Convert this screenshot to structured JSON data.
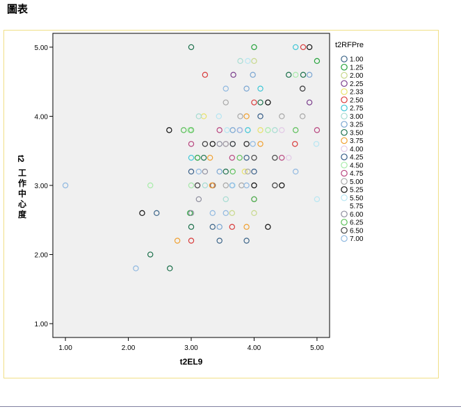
{
  "page": {
    "title": "圖表"
  },
  "chart_data": {
    "type": "scatter",
    "xlabel": "t2EL9",
    "ylabel": "t2工作中心度",
    "xlim": [
      0.8,
      5.2
    ],
    "ylim": [
      0.8,
      5.2
    ],
    "xticks": [
      "1.00",
      "2.00",
      "3.00",
      "4.00",
      "5.00"
    ],
    "yticks": [
      "1.00",
      "2.00",
      "3.00",
      "4.00",
      "5.00"
    ],
    "grid": false,
    "legend": {
      "title": "t2RFPre",
      "placement": "right"
    },
    "series": [
      {
        "name": "1.00",
        "color": "#3b6488",
        "points": [
          [
            3.45,
            2.2
          ],
          [
            2.45,
            2.6
          ],
          [
            3.88,
            2.2
          ],
          [
            3.34,
            2.4
          ]
        ]
      },
      {
        "name": "1.25",
        "color": "#23a23a",
        "points": [
          [
            4.0,
            5.0
          ],
          [
            5.0,
            4.8
          ],
          [
            2.98,
            2.6
          ],
          [
            3.1,
            3.4
          ]
        ]
      },
      {
        "name": "2.00",
        "color": "#c7d88a",
        "points": [
          [
            4.0,
            4.8
          ],
          [
            3.35,
            3.0
          ],
          [
            4.0,
            2.6
          ],
          [
            3.65,
            2.6
          ]
        ]
      },
      {
        "name": "2.25",
        "color": "#7a3d8c",
        "points": [
          [
            3.67,
            4.6
          ],
          [
            4.88,
            4.2
          ],
          [
            3.55,
            3.6
          ],
          [
            3.34,
            3.0
          ]
        ]
      },
      {
        "name": "2.33",
        "color": "#e8e26a",
        "points": [
          [
            3.2,
            4.0
          ],
          [
            4.1,
            3.8
          ],
          [
            3.85,
            3.2
          ]
        ]
      },
      {
        "name": "2.50",
        "color": "#d83a3a",
        "points": [
          [
            4.78,
            5.0
          ],
          [
            3.22,
            4.6
          ],
          [
            4.0,
            4.2
          ],
          [
            4.65,
            3.6
          ],
          [
            3.0,
            2.2
          ],
          [
            3.65,
            2.4
          ]
        ]
      },
      {
        "name": "2.75",
        "color": "#3ec6d6",
        "points": [
          [
            4.66,
            5.0
          ],
          [
            4.1,
            4.4
          ],
          [
            3.9,
            3.8
          ],
          [
            3.0,
            3.4
          ]
        ]
      },
      {
        "name": "3.00",
        "color": "#a6dcd2",
        "points": [
          [
            3.78,
            4.8
          ],
          [
            3.12,
            4.0
          ],
          [
            4.33,
            3.8
          ],
          [
            3.22,
            3.0
          ],
          [
            3.55,
            2.8
          ]
        ]
      },
      {
        "name": "3.25",
        "color": "#7aa6d2",
        "points": [
          [
            3.98,
            4.6
          ],
          [
            3.88,
            4.4
          ],
          [
            3.66,
            3.8
          ],
          [
            3.45,
            3.2
          ],
          [
            4.88,
            4.6
          ],
          [
            3.45,
            2.4
          ]
        ]
      },
      {
        "name": "3.50",
        "color": "#1a6f4a",
        "points": [
          [
            3.0,
            5.0
          ],
          [
            4.55,
            4.6
          ],
          [
            4.1,
            4.2
          ],
          [
            3.2,
            3.4
          ],
          [
            3.55,
            3.2
          ],
          [
            2.35,
            2.0
          ],
          [
            2.66,
            1.8
          ],
          [
            3.0,
            2.4
          ],
          [
            4.78,
            4.6
          ]
        ]
      },
      {
        "name": "3.75",
        "color": "#f0a030",
        "points": [
          [
            3.88,
            4.0
          ],
          [
            4.1,
            3.6
          ],
          [
            3.3,
            3.4
          ],
          [
            3.33,
            3.0
          ],
          [
            2.78,
            2.2
          ],
          [
            3.88,
            2.4
          ]
        ]
      },
      {
        "name": "4.00",
        "color": "#e2c8e6",
        "points": [
          [
            3.78,
            3.8
          ],
          [
            4.44,
            3.8
          ],
          [
            3.0,
            3.0
          ],
          [
            4.55,
            3.4
          ]
        ]
      },
      {
        "name": "4.25",
        "color": "#355c86",
        "points": [
          [
            4.1,
            4.0
          ],
          [
            3.0,
            3.2
          ],
          [
            3.66,
            3.6
          ],
          [
            4.0,
            3.2
          ],
          [
            3.88,
            3.4
          ]
        ]
      },
      {
        "name": "4.50",
        "color": "#a8ecaa",
        "points": [
          [
            4.66,
            4.6
          ],
          [
            4.22,
            3.8
          ],
          [
            2.35,
            3.0
          ],
          [
            3.0,
            3.0
          ],
          [
            2.98,
            3.8
          ]
        ]
      },
      {
        "name": "4.75",
        "color": "#b8457e",
        "points": [
          [
            3.45,
            3.8
          ],
          [
            5.0,
            3.8
          ],
          [
            3.0,
            3.6
          ],
          [
            4.44,
            3.4
          ],
          [
            3.65,
            3.4
          ]
        ]
      },
      {
        "name": "5.00",
        "color": "#a8a8a8",
        "points": [
          [
            3.55,
            4.2
          ],
          [
            4.22,
            4.2
          ],
          [
            3.78,
            4.0
          ],
          [
            4.44,
            4.0
          ],
          [
            3.55,
            3.6
          ],
          [
            3.9,
            3.2
          ],
          [
            3.55,
            3.0
          ],
          [
            3.8,
            3.0
          ],
          [
            4.77,
            4.0
          ],
          [
            3.22,
            3.6
          ]
        ]
      },
      {
        "name": "5.25",
        "color": "#101010",
        "points": [
          [
            4.88,
            5.0
          ],
          [
            4.22,
            4.2
          ],
          [
            2.65,
            3.8
          ],
          [
            3.34,
            3.6
          ],
          [
            3.88,
            3.6
          ],
          [
            4.0,
            3.0
          ],
          [
            4.44,
            3.0
          ],
          [
            4.0,
            2.8
          ],
          [
            2.22,
            2.6
          ],
          [
            4.22,
            2.4
          ]
        ]
      },
      {
        "name": "5.50",
        "color": "#b6e6f2",
        "points": [
          [
            3.9,
            4.8
          ],
          [
            3.44,
            4.0
          ],
          [
            3.57,
            3.8
          ],
          [
            4.99,
            3.6
          ],
          [
            3.66,
            3.0
          ],
          [
            5.0,
            2.8
          ]
        ]
      },
      {
        "name": "5.75",
        "color": "#ffffff",
        "points": []
      },
      {
        "name": "6.00",
        "color": "#8e8e9e",
        "points": [
          [
            4.77,
            4.4
          ],
          [
            3.45,
            3.6
          ],
          [
            3.22,
            3.2
          ],
          [
            3.0,
            2.6
          ],
          [
            3.12,
            2.8
          ]
        ]
      },
      {
        "name": "6.25",
        "color": "#5cbf5a",
        "points": [
          [
            3.0,
            3.8
          ],
          [
            2.88,
            3.8
          ],
          [
            4.66,
            3.8
          ],
          [
            3.77,
            3.4
          ],
          [
            3.66,
            3.2
          ],
          [
            4.0,
            2.8
          ]
        ]
      },
      {
        "name": "6.50",
        "color": "#404040",
        "points": [
          [
            4.77,
            4.4
          ],
          [
            3.88,
            3.6
          ],
          [
            3.66,
            3.6
          ],
          [
            4.33,
            3.4
          ],
          [
            4.0,
            3.4
          ],
          [
            3.22,
            3.6
          ],
          [
            4.33,
            3.0
          ],
          [
            3.1,
            3.0
          ]
        ]
      },
      {
        "name": "7.00",
        "color": "#8fb8e0",
        "points": [
          [
            1.0,
            3.0
          ],
          [
            3.55,
            4.4
          ],
          [
            3.98,
            3.6
          ],
          [
            3.77,
            3.8
          ],
          [
            3.65,
            3.0
          ],
          [
            4.66,
            3.2
          ],
          [
            3.88,
            3.0
          ],
          [
            3.12,
            3.2
          ],
          [
            2.12,
            1.8
          ],
          [
            3.55,
            2.6
          ],
          [
            3.34,
            2.6
          ]
        ]
      }
    ]
  }
}
